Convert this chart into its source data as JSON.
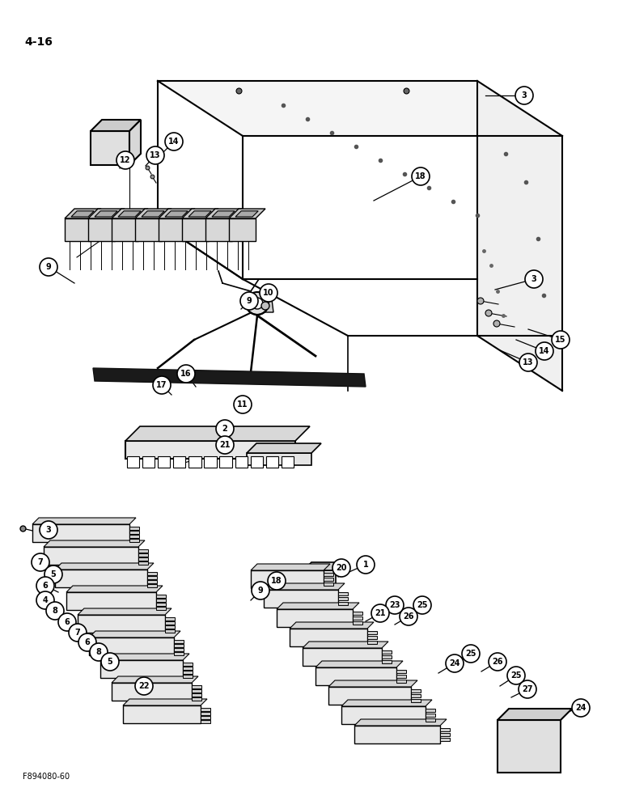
{
  "page_label": "4-16",
  "footer_label": "F894080-60",
  "background_color": "#ffffff",
  "line_color": "#000000",
  "figsize": [
    7.8,
    10.0
  ],
  "dpi": 100
}
